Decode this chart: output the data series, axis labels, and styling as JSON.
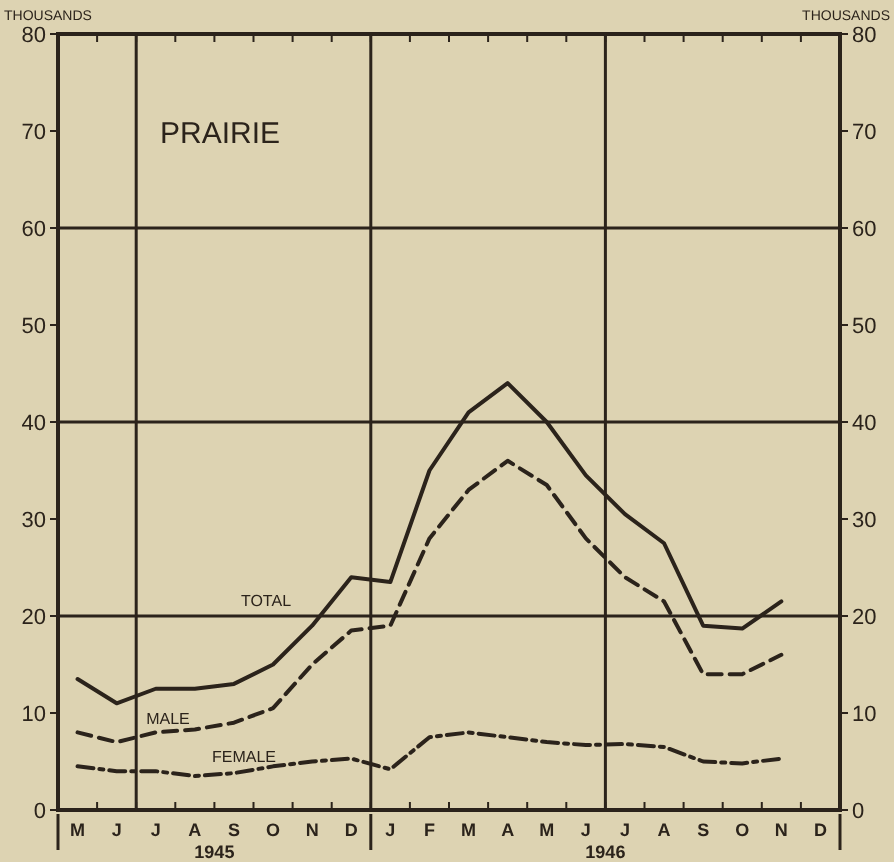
{
  "chart_data": {
    "type": "line",
    "title": "PRAIRIE",
    "ylabel": "THOUSANDS",
    "y2label": "THOUSANDS",
    "categories": [
      "M",
      "J",
      "J",
      "A",
      "S",
      "O",
      "N",
      "D",
      "J",
      "F",
      "M",
      "A",
      "M",
      "J",
      "J",
      "A",
      "S",
      "O",
      "N",
      "D"
    ],
    "ylim": [
      0,
      80
    ],
    "yticks": [
      0,
      10,
      20,
      30,
      40,
      50,
      60,
      70,
      80
    ],
    "y2lim": [
      0,
      80
    ],
    "y2ticks": [
      0,
      10,
      20,
      30,
      40,
      50,
      60,
      70,
      80
    ],
    "grid": true,
    "marker": "none",
    "annotations": [
      "1945",
      "1946"
    ],
    "series": [
      {
        "name": "TOTAL",
        "color": "#2b231b",
        "line_style": "solid",
        "values": [
          13.5,
          11,
          12.5,
          12.5,
          13,
          15,
          19,
          24,
          23.5,
          35,
          41,
          44,
          40,
          34.5,
          30.5,
          27.5,
          19,
          18.7,
          21.5,
          null
        ]
      },
      {
        "name": "MALE",
        "color": "#2b231b",
        "line_style": "dashed",
        "values": [
          8,
          7,
          8,
          8.3,
          9,
          10.5,
          15,
          18.5,
          19,
          28,
          33,
          36,
          33.5,
          28,
          24,
          21.5,
          14,
          14,
          16,
          null
        ]
      },
      {
        "name": "FEMALE",
        "color": "#2b231b",
        "line_style": "dotted",
        "values": [
          4.5,
          4,
          4,
          3.5,
          3.8,
          4.5,
          5,
          5.3,
          4.2,
          7.5,
          8,
          7.5,
          7,
          6.7,
          6.8,
          6.5,
          5,
          4.8,
          5.3,
          null
        ]
      }
    ]
  }
}
